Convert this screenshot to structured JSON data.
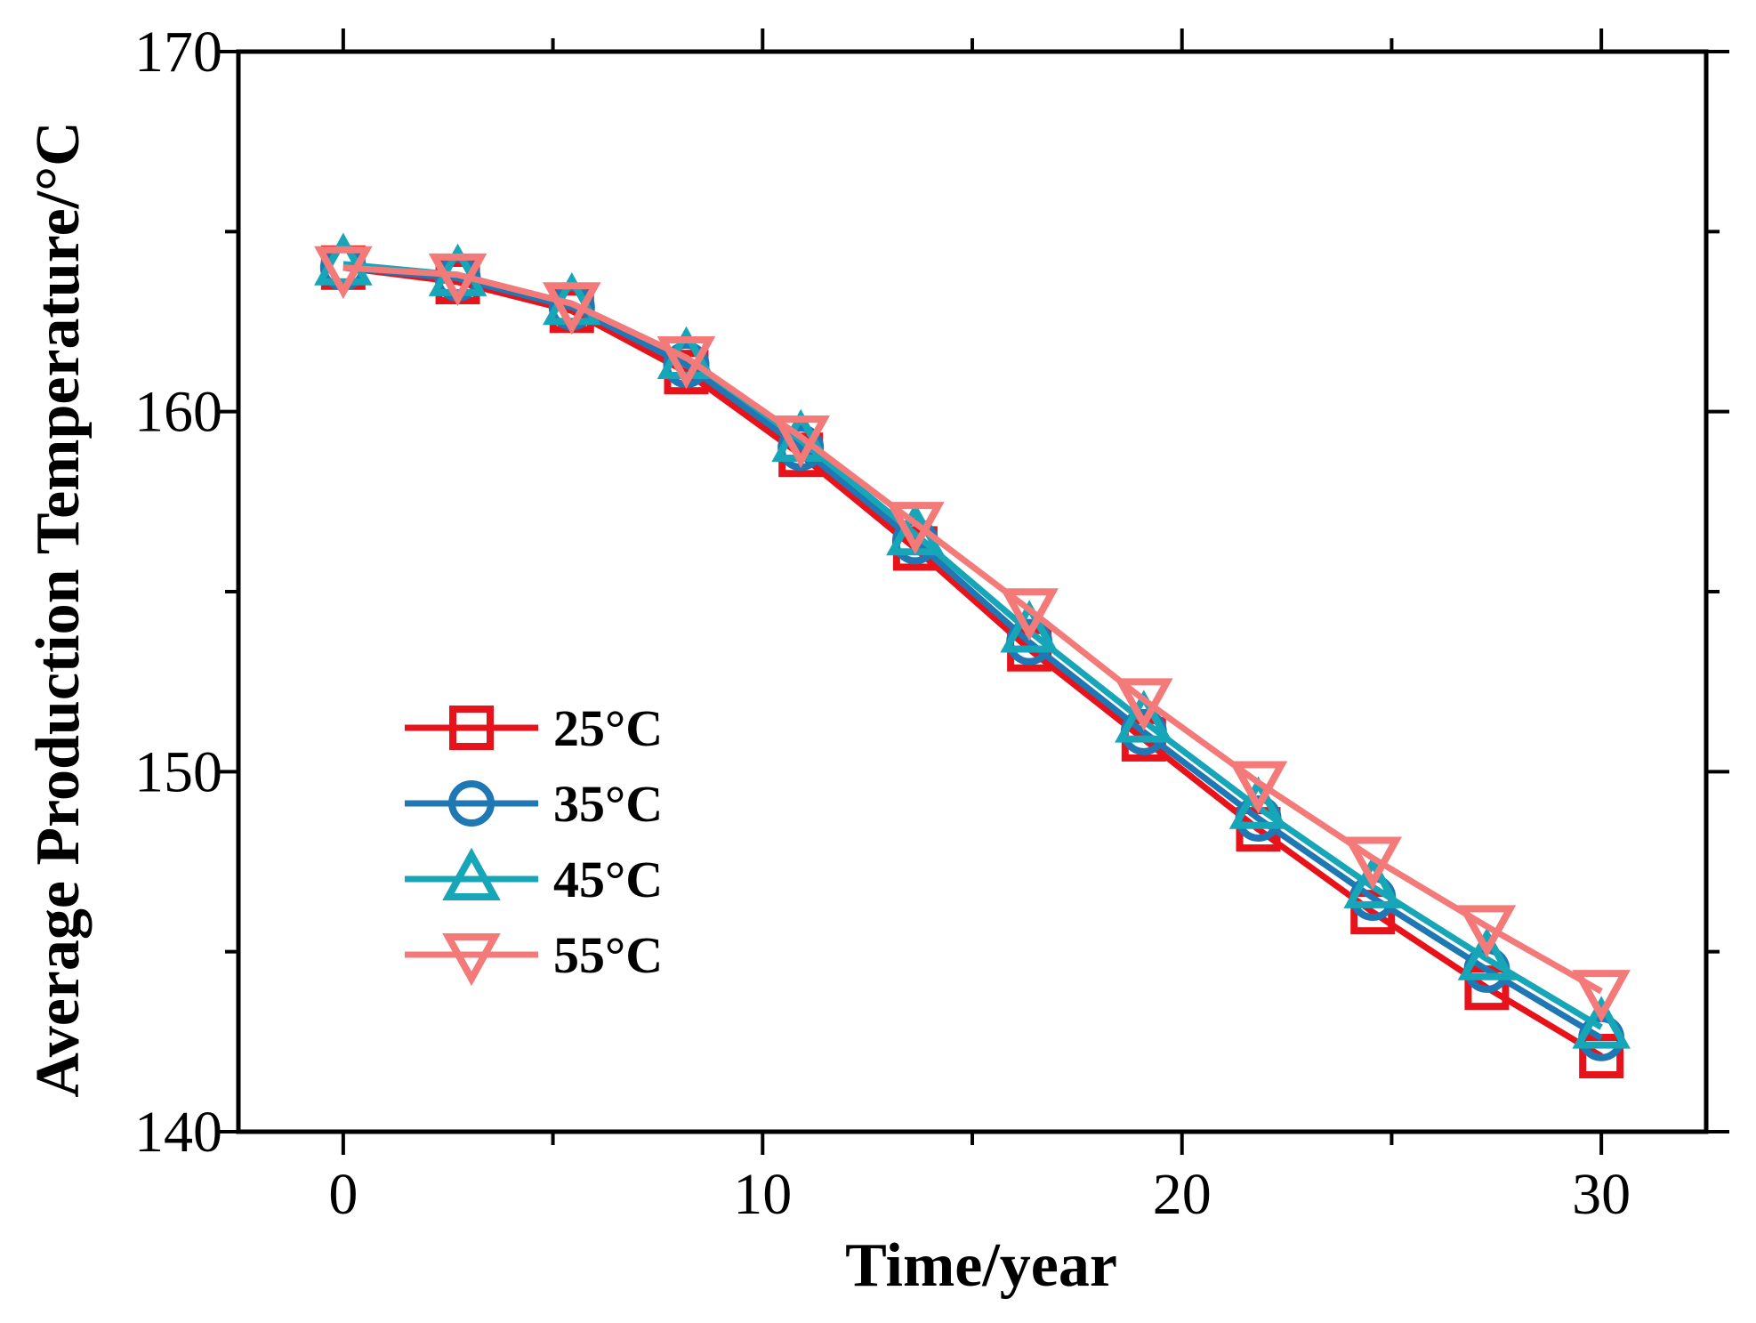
{
  "chart_data": {
    "type": "line",
    "title": "",
    "xlabel": "Time/year",
    "ylabel": "Average Production Temperature/°C",
    "xlim": [
      -2.5,
      32.5
    ],
    "ylim": [
      140,
      170
    ],
    "xticks": [
      0,
      10,
      20,
      30
    ],
    "xtick_labels": [
      "0",
      "10",
      "20",
      "30"
    ],
    "yticks": [
      140,
      150,
      160,
      170
    ],
    "ytick_labels": [
      "140",
      "150",
      "160",
      "170"
    ],
    "grid": false,
    "legend_position": "lower-left",
    "x": [
      0,
      2.73,
      5.45,
      8.18,
      10.91,
      13.64,
      16.36,
      19.09,
      21.82,
      24.55,
      27.27,
      30
    ],
    "series": [
      {
        "name": "25°C",
        "marker": "square",
        "color": "#e8131a",
        "values": [
          164.0,
          163.6,
          162.8,
          161.1,
          158.8,
          156.2,
          153.4,
          150.9,
          148.4,
          146.1,
          144.0,
          142.1
        ]
      },
      {
        "name": "35°C",
        "marker": "circle",
        "color": "#1f77b4",
        "values": [
          164.0,
          163.7,
          162.9,
          161.3,
          159.0,
          156.4,
          153.6,
          151.1,
          148.7,
          146.5,
          144.5,
          142.6
        ]
      },
      {
        "name": "45°C",
        "marker": "triangle-up",
        "color": "#17a5b8",
        "values": [
          164.1,
          163.8,
          163.0,
          161.5,
          159.2,
          156.6,
          153.9,
          151.4,
          149.0,
          146.8,
          144.8,
          142.9
        ]
      },
      {
        "name": "55°C",
        "marker": "triangle-down",
        "color": "#f47a7a",
        "values": [
          164.0,
          163.8,
          163.0,
          161.5,
          159.3,
          156.9,
          154.5,
          152.0,
          149.7,
          147.6,
          145.7,
          143.9
        ]
      }
    ]
  }
}
